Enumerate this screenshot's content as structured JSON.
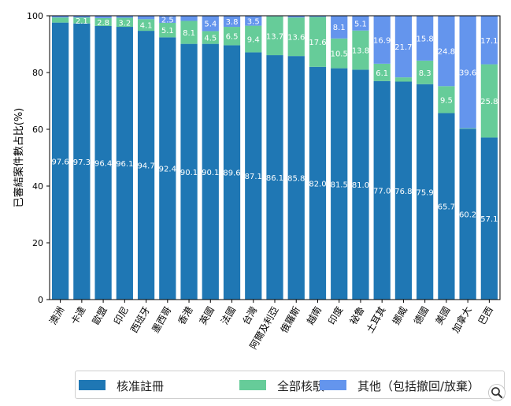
{
  "chart_data": {
    "type": "bar",
    "stacked": true,
    "categories": [
      "澳洲",
      "卡達",
      "歐盟",
      "印尼",
      "西班牙",
      "墨西哥",
      "香港",
      "英國",
      "法國",
      "台灣",
      "阿爾及利亞",
      "俄羅斯",
      "越南",
      "印度",
      "祕魯",
      "土耳其",
      "挪威",
      "德國",
      "美國",
      "加拿大",
      "巴西"
    ],
    "series": [
      {
        "name": "核准註冊",
        "color": "#1f77b4",
        "values": [
          97.6,
          97.3,
          96.4,
          96.1,
          94.7,
          92.4,
          90.1,
          90.1,
          89.6,
          87.1,
          86.1,
          85.8,
          82.0,
          81.5,
          81.0,
          77.0,
          76.8,
          75.9,
          65.7,
          60.2,
          57.1
        ]
      },
      {
        "name": "全部核駁",
        "color": "#66cc99",
        "values": [
          1.8,
          2.1,
          2.8,
          3.2,
          4.1,
          5.1,
          8.1,
          4.5,
          6.5,
          9.4,
          13.7,
          13.6,
          17.6,
          10.5,
          13.8,
          6.1,
          1.5,
          8.3,
          9.5,
          0.2,
          25.8
        ]
      },
      {
        "name": "其他（包括撤回/放棄）",
        "color": "#6495ed",
        "values": [
          0.6,
          0.6,
          0.8,
          0.7,
          1.2,
          2.5,
          1.8,
          5.4,
          3.8,
          3.5,
          0.2,
          0.6,
          0.4,
          8.1,
          5.1,
          16.9,
          21.7,
          15.8,
          24.8,
          39.6,
          17.1
        ]
      }
    ],
    "labels": [
      [
        "97.6",
        "97.3",
        "96.4",
        "96.1",
        "94.7",
        "92.4",
        "90.1",
        "90.1",
        "89.6",
        "87.1",
        "86.1",
        "85.8",
        "82.0",
        "81.5",
        "81.0",
        "77.0",
        "76.8",
        "75.9",
        "65.7",
        "60.2",
        "57.1"
      ],
      [
        "",
        "2.1",
        "2.8",
        "3.2",
        "4.1",
        "5.1",
        "8.1",
        "4.5",
        "6.5",
        "9.4",
        "13.7",
        "13.6",
        "17.6",
        "10.5",
        "13.8",
        "6.1",
        "",
        "8.3",
        "9.5",
        "",
        "25.8"
      ],
      [
        "",
        "",
        "",
        "",
        "",
        "2.5",
        "",
        "5.4",
        "3.8",
        "3.5",
        "",
        "",
        "",
        "8.1",
        "5.1",
        "16.9",
        "21.7",
        "15.8",
        "24.8",
        "39.6",
        "17.1"
      ]
    ],
    "ylabel": "已審結案件數占比(%)",
    "ylim": [
      0,
      100
    ],
    "yticks": [
      0,
      20,
      40,
      60,
      80,
      100
    ],
    "legend_position": "bottom"
  },
  "legend": {
    "approved": "核准註冊",
    "rejected": "全部核駁",
    "other": "其他（包括撤回/放棄）"
  },
  "icons": {
    "zoom": "magnifier-icon"
  }
}
